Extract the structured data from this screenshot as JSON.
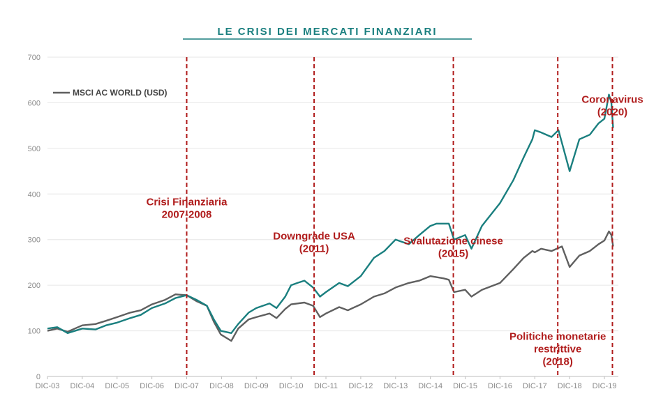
{
  "chart_data": {
    "type": "line",
    "title": "LE CRISI DEI MERCATI FINANZIARI",
    "xlabel": "",
    "ylabel": "",
    "ylim": [
      0,
      700
    ],
    "yticks": [
      0,
      100,
      200,
      300,
      400,
      500,
      600,
      700
    ],
    "xlim": [
      2003.92,
      2020.2
    ],
    "xticks": [
      {
        "x": 2003.92,
        "label": "DIC-03"
      },
      {
        "x": 2004.92,
        "label": "DIC-04"
      },
      {
        "x": 2005.92,
        "label": "DIC-05"
      },
      {
        "x": 2006.92,
        "label": "DIC-06"
      },
      {
        "x": 2007.92,
        "label": "DIC-07"
      },
      {
        "x": 2008.92,
        "label": "DIC-08"
      },
      {
        "x": 2009.92,
        "label": "DIC-09"
      },
      {
        "x": 2010.92,
        "label": "DIC-10"
      },
      {
        "x": 2011.92,
        "label": "DIC-11"
      },
      {
        "x": 2012.92,
        "label": "DIC-12"
      },
      {
        "x": 2013.92,
        "label": "DIC-13"
      },
      {
        "x": 2014.92,
        "label": "DIC-14"
      },
      {
        "x": 2015.92,
        "label": "DIC-15"
      },
      {
        "x": 2016.92,
        "label": "DIC-16"
      },
      {
        "x": 2017.92,
        "label": "DIC-17"
      },
      {
        "x": 2018.92,
        "label": "DIC-18"
      },
      {
        "x": 2019.92,
        "label": "DIC-19"
      }
    ],
    "grid": true,
    "legend": "top-left",
    "series": [
      {
        "name": "MSCI AC WORLD (USD)",
        "color": "#5f5f5f",
        "points": [
          [
            2003.92,
            100
          ],
          [
            2004.2,
            105
          ],
          [
            2004.5,
            98
          ],
          [
            2004.92,
            112
          ],
          [
            2005.3,
            115
          ],
          [
            2005.6,
            122
          ],
          [
            2005.92,
            130
          ],
          [
            2006.3,
            140
          ],
          [
            2006.6,
            145
          ],
          [
            2006.92,
            158
          ],
          [
            2007.3,
            168
          ],
          [
            2007.6,
            180
          ],
          [
            2007.92,
            178
          ],
          [
            2008.2,
            165
          ],
          [
            2008.5,
            155
          ],
          [
            2008.7,
            120
          ],
          [
            2008.9,
            92
          ],
          [
            2009.2,
            78
          ],
          [
            2009.4,
            105
          ],
          [
            2009.7,
            125
          ],
          [
            2009.92,
            130
          ],
          [
            2010.3,
            138
          ],
          [
            2010.5,
            128
          ],
          [
            2010.75,
            148
          ],
          [
            2010.92,
            158
          ],
          [
            2011.3,
            162
          ],
          [
            2011.55,
            155
          ],
          [
            2011.75,
            130
          ],
          [
            2011.92,
            138
          ],
          [
            2012.3,
            152
          ],
          [
            2012.55,
            145
          ],
          [
            2012.92,
            158
          ],
          [
            2013.3,
            175
          ],
          [
            2013.6,
            182
          ],
          [
            2013.92,
            195
          ],
          [
            2014.3,
            205
          ],
          [
            2014.6,
            210
          ],
          [
            2014.92,
            220
          ],
          [
            2015.3,
            215
          ],
          [
            2015.45,
            212
          ],
          [
            2015.6,
            185
          ],
          [
            2015.92,
            190
          ],
          [
            2016.1,
            175
          ],
          [
            2016.4,
            190
          ],
          [
            2016.92,
            205
          ],
          [
            2017.3,
            235
          ],
          [
            2017.6,
            260
          ],
          [
            2017.85,
            275
          ],
          [
            2017.92,
            272
          ],
          [
            2018.1,
            280
          ],
          [
            2018.4,
            275
          ],
          [
            2018.7,
            285
          ],
          [
            2018.92,
            240
          ],
          [
            2019.2,
            265
          ],
          [
            2019.5,
            275
          ],
          [
            2019.75,
            290
          ],
          [
            2019.92,
            298
          ],
          [
            2020.05,
            318
          ],
          [
            2020.12,
            310
          ],
          [
            2020.17,
            285
          ]
        ]
      },
      {
        "name": "",
        "color": "#1a7f7f",
        "points": [
          [
            2003.92,
            105
          ],
          [
            2004.2,
            108
          ],
          [
            2004.5,
            95
          ],
          [
            2004.92,
            105
          ],
          [
            2005.3,
            103
          ],
          [
            2005.6,
            112
          ],
          [
            2005.92,
            118
          ],
          [
            2006.3,
            128
          ],
          [
            2006.6,
            135
          ],
          [
            2006.92,
            150
          ],
          [
            2007.3,
            160
          ],
          [
            2007.6,
            172
          ],
          [
            2007.92,
            178
          ],
          [
            2008.2,
            168
          ],
          [
            2008.5,
            155
          ],
          [
            2008.7,
            125
          ],
          [
            2008.9,
            100
          ],
          [
            2009.2,
            95
          ],
          [
            2009.4,
            115
          ],
          [
            2009.7,
            140
          ],
          [
            2009.92,
            150
          ],
          [
            2010.3,
            160
          ],
          [
            2010.5,
            150
          ],
          [
            2010.75,
            175
          ],
          [
            2010.92,
            200
          ],
          [
            2011.1,
            205
          ],
          [
            2011.3,
            210
          ],
          [
            2011.55,
            195
          ],
          [
            2011.75,
            175
          ],
          [
            2011.92,
            185
          ],
          [
            2012.3,
            205
          ],
          [
            2012.55,
            198
          ],
          [
            2012.92,
            220
          ],
          [
            2013.3,
            260
          ],
          [
            2013.6,
            275
          ],
          [
            2013.92,
            300
          ],
          [
            2014.3,
            290
          ],
          [
            2014.6,
            310
          ],
          [
            2014.92,
            330
          ],
          [
            2015.1,
            335
          ],
          [
            2015.45,
            335
          ],
          [
            2015.6,
            300
          ],
          [
            2015.92,
            310
          ],
          [
            2016.1,
            280
          ],
          [
            2016.4,
            330
          ],
          [
            2016.92,
            380
          ],
          [
            2017.3,
            430
          ],
          [
            2017.6,
            480
          ],
          [
            2017.85,
            520
          ],
          [
            2017.92,
            540
          ],
          [
            2018.1,
            535
          ],
          [
            2018.4,
            525
          ],
          [
            2018.6,
            540
          ],
          [
            2018.92,
            450
          ],
          [
            2019.2,
            520
          ],
          [
            2019.5,
            530
          ],
          [
            2019.75,
            555
          ],
          [
            2019.92,
            565
          ],
          [
            2020.05,
            618
          ],
          [
            2020.12,
            600
          ],
          [
            2020.17,
            545
          ]
        ]
      }
    ],
    "annotations": [
      {
        "x": 2007.92,
        "lines": [
          "Crisi Finanziaria",
          "2007-2008"
        ],
        "y": 375
      },
      {
        "x": 2011.58,
        "lines": [
          "Downgrade USA",
          "(2011)"
        ],
        "y": 300
      },
      {
        "x": 2015.58,
        "lines": [
          "Svalutazione cinese",
          "(2015)"
        ],
        "y": 290
      },
      {
        "x": 2018.58,
        "lines": [
          "Politiche monetarie",
          "restrittive",
          "(2018)"
        ],
        "y": 80
      },
      {
        "x": 2020.15,
        "lines": [
          "Coronavirus",
          "(2020)"
        ],
        "y": 600
      }
    ],
    "event_line_color": "#b01c1c",
    "annotation_color": "#b01c1c",
    "title_color": "#1a7f7f"
  }
}
